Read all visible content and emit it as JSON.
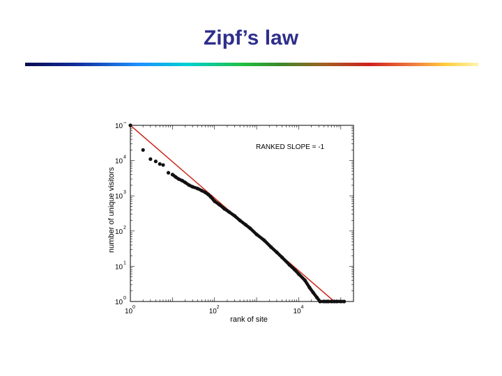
{
  "slide": {
    "title": "Zipf’s law",
    "title_color": "#2e2e8c"
  },
  "chart_data": {
    "type": "scatter",
    "xlabel": "rank of site",
    "ylabel": "number of unique visitors",
    "annotation": "RANKED SLOPE = -1",
    "x_scale": "log",
    "y_scale": "log",
    "xlim": [
      1,
      200000
    ],
    "ylim": [
      1,
      100000
    ],
    "x_ticks": [
      {
        "value": 1,
        "base": "10",
        "exp": "0"
      },
      {
        "value": 100,
        "base": "10",
        "exp": "2"
      },
      {
        "value": 10000,
        "base": "10",
        "exp": "4"
      }
    ],
    "y_ticks": [
      {
        "value": 1,
        "base": "10",
        "exp": "0"
      },
      {
        "value": 10,
        "base": "10",
        "exp": "1"
      },
      {
        "value": 100,
        "base": "10",
        "exp": "2"
      },
      {
        "value": 1000,
        "base": "10",
        "exp": "3"
      },
      {
        "value": 10000,
        "base": "10",
        "exp": "4"
      },
      {
        "value": 100000,
        "base": "10",
        "exp": "5"
      }
    ],
    "grid": false,
    "series": [
      {
        "kind": "points",
        "color": "#111111",
        "x": [
          1,
          2,
          3,
          4,
          5,
          6,
          8,
          10,
          12,
          14,
          17,
          20,
          25,
          30,
          40,
          50,
          60,
          70,
          80,
          100,
          130,
          170,
          220,
          300,
          400,
          550,
          700,
          1000,
          1500,
          2200,
          3000,
          4000,
          6000,
          8000,
          10000,
          14000,
          18000,
          22000,
          27000,
          32000,
          40000,
          45000,
          50000,
          60000,
          70000,
          80000,
          100000,
          120000
        ],
        "y": [
          100000,
          20000,
          11000,
          9500,
          8000,
          7500,
          4500,
          4000,
          3400,
          3000,
          2700,
          2400,
          2000,
          1800,
          1600,
          1400,
          1250,
          1100,
          950,
          700,
          560,
          430,
          350,
          270,
          200,
          150,
          120,
          80,
          55,
          35,
          25,
          18,
          11,
          8,
          6,
          4,
          2.5,
          1.8,
          1.3,
          1,
          1,
          1,
          1,
          1,
          1,
          1,
          1,
          1
        ]
      },
      {
        "kind": "fit",
        "color": "#cc2a1e",
        "x": [
          1,
          70000
        ],
        "y": [
          100000,
          1
        ]
      }
    ]
  }
}
